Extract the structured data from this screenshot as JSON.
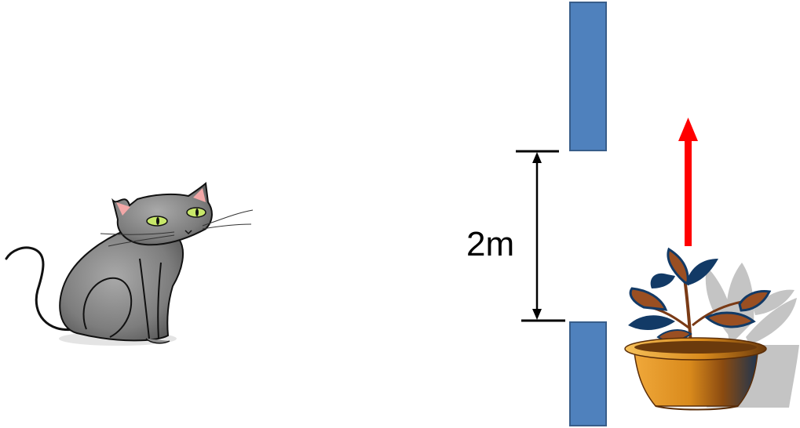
{
  "labels": {
    "gap_distance": "2m"
  },
  "colors": {
    "barrier_fill": "#4f81bd",
    "barrier_stroke": "#385d8a",
    "arrow": "#ff0000",
    "cat_body": "#8c8c8c",
    "cat_eye": "#c8e86a",
    "cat_ear_inner": "#f2a7a7",
    "pot_orange": "#d98a1c",
    "pot_brown": "#8a4a10",
    "leaf_navy": "#123a66",
    "leaf_brown": "#9a4f22",
    "shadow_gray": "#c4c4c4"
  },
  "icons": {
    "cat": "cat-icon",
    "plant": "potted-plant-icon",
    "arrow": "arrow-up-icon"
  }
}
